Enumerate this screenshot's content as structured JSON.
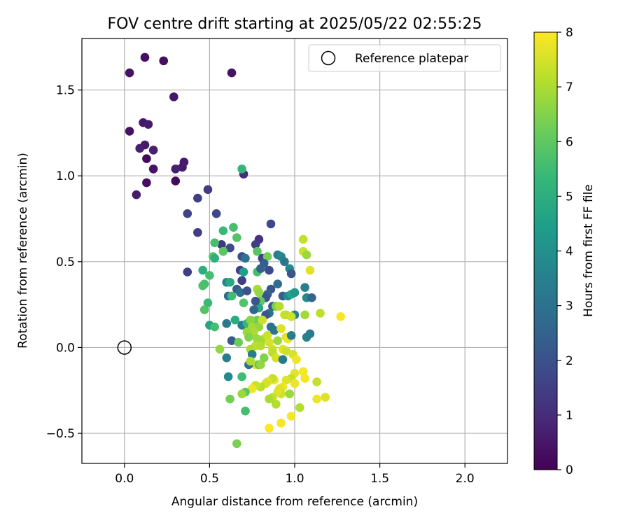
{
  "chart_data": {
    "type": "scatter",
    "title": "FOV centre drift starting at 2025/05/22 02:55:25",
    "xlabel": "Angular distance from reference (arcmin)",
    "ylabel": "Rotation from reference (arcmin)",
    "xlim": [
      -0.25,
      2.25
    ],
    "ylim": [
      -0.675,
      1.8
    ],
    "xticks": [
      {
        "value": 0.0,
        "label": "0.0"
      },
      {
        "value": 0.5,
        "label": "0.5"
      },
      {
        "value": 1.0,
        "label": "1.0"
      },
      {
        "value": 1.5,
        "label": "1.5"
      },
      {
        "value": 2.0,
        "label": "2.0"
      }
    ],
    "yticks": [
      {
        "value": -0.5,
        "label": "−0.5"
      },
      {
        "value": 0.0,
        "label": "0.0"
      },
      {
        "value": 0.5,
        "label": "0.5"
      },
      {
        "value": 1.0,
        "label": "1.0"
      },
      {
        "value": 1.5,
        "label": "1.5"
      }
    ],
    "grid": true,
    "legend": {
      "position": "top-right",
      "entries": [
        {
          "label": "Reference platepar",
          "marker": "open-circle"
        }
      ]
    },
    "reference_point": {
      "x": 0.0,
      "y": 0.0
    },
    "colorbar": {
      "label": "Hours from first FF file",
      "colormap": "viridis",
      "range": [
        0,
        8
      ],
      "ticks": [
        {
          "value": 0,
          "label": "0"
        },
        {
          "value": 1,
          "label": "1"
        },
        {
          "value": 2,
          "label": "2"
        },
        {
          "value": 3,
          "label": "3"
        },
        {
          "value": 4,
          "label": "4"
        },
        {
          "value": 5,
          "label": "5"
        },
        {
          "value": 6,
          "label": "6"
        },
        {
          "value": 7,
          "label": "7"
        },
        {
          "value": 8,
          "label": "8"
        }
      ]
    },
    "points": [
      {
        "x": 0.12,
        "y": 1.69,
        "h": 0.3
      },
      {
        "x": 0.23,
        "y": 1.67,
        "h": 0.3
      },
      {
        "x": 0.03,
        "y": 1.6,
        "h": 0.4
      },
      {
        "x": 0.63,
        "y": 1.6,
        "h": 0.4
      },
      {
        "x": 0.29,
        "y": 1.46,
        "h": 0.5
      },
      {
        "x": 0.11,
        "y": 1.31,
        "h": 0.5
      },
      {
        "x": 0.14,
        "y": 1.3,
        "h": 0.6
      },
      {
        "x": 0.03,
        "y": 1.26,
        "h": 0.4
      },
      {
        "x": 0.12,
        "y": 1.18,
        "h": 0.6
      },
      {
        "x": 0.09,
        "y": 1.16,
        "h": 0.7
      },
      {
        "x": 0.17,
        "y": 1.15,
        "h": 0.7
      },
      {
        "x": 0.13,
        "y": 1.1,
        "h": 0.2
      },
      {
        "x": 0.34,
        "y": 1.05,
        "h": 0.6
      },
      {
        "x": 0.35,
        "y": 1.08,
        "h": 0.6
      },
      {
        "x": 0.3,
        "y": 1.04,
        "h": 0.7
      },
      {
        "x": 0.17,
        "y": 1.04,
        "h": 0.4
      },
      {
        "x": 0.3,
        "y": 0.97,
        "h": 0.2
      },
      {
        "x": 0.13,
        "y": 0.96,
        "h": 0.3
      },
      {
        "x": 0.07,
        "y": 0.89,
        "h": 0.6
      },
      {
        "x": 0.49,
        "y": 0.92,
        "h": 1.4
      },
      {
        "x": 0.43,
        "y": 0.87,
        "h": 1.5
      },
      {
        "x": 0.37,
        "y": 0.78,
        "h": 1.6
      },
      {
        "x": 0.54,
        "y": 0.78,
        "h": 1.7
      },
      {
        "x": 0.7,
        "y": 1.01,
        "h": 1.0
      },
      {
        "x": 0.69,
        "y": 1.04,
        "h": 5.3
      },
      {
        "x": 0.43,
        "y": 0.67,
        "h": 1.4
      },
      {
        "x": 0.37,
        "y": 0.44,
        "h": 1.5
      },
      {
        "x": 0.86,
        "y": 0.72,
        "h": 1.7
      },
      {
        "x": 0.79,
        "y": 0.63,
        "h": 1.2
      },
      {
        "x": 0.77,
        "y": 0.6,
        "h": 1.5
      },
      {
        "x": 0.57,
        "y": 0.6,
        "h": 1.3
      },
      {
        "x": 0.62,
        "y": 0.58,
        "h": 1.8
      },
      {
        "x": 0.69,
        "y": 0.53,
        "h": 1.9
      },
      {
        "x": 0.71,
        "y": 0.52,
        "h": 3.0
      },
      {
        "x": 0.68,
        "y": 0.45,
        "h": 1.5
      },
      {
        "x": 0.66,
        "y": 0.64,
        "h": 5.8
      },
      {
        "x": 0.64,
        "y": 0.7,
        "h": 5.6
      },
      {
        "x": 0.58,
        "y": 0.68,
        "h": 5.4
      },
      {
        "x": 0.53,
        "y": 0.61,
        "h": 5.6
      },
      {
        "x": 0.58,
        "y": 0.56,
        "h": 5.9
      },
      {
        "x": 0.52,
        "y": 0.53,
        "h": 5.9
      },
      {
        "x": 0.53,
        "y": 0.52,
        "h": 5.1
      },
      {
        "x": 0.46,
        "y": 0.45,
        "h": 5.0
      },
      {
        "x": 0.5,
        "y": 0.42,
        "h": 5.6
      },
      {
        "x": 0.47,
        "y": 0.37,
        "h": 5.6
      },
      {
        "x": 0.46,
        "y": 0.36,
        "h": 5.7
      },
      {
        "x": 0.49,
        "y": 0.26,
        "h": 5.4
      },
      {
        "x": 0.47,
        "y": 0.22,
        "h": 5.8
      },
      {
        "x": 0.5,
        "y": 0.13,
        "h": 4.7
      },
      {
        "x": 0.53,
        "y": 0.12,
        "h": 5.6
      },
      {
        "x": 0.56,
        "y": -0.01,
        "h": 6.7
      },
      {
        "x": 0.6,
        "y": 0.14,
        "h": 3.2
      },
      {
        "x": 0.63,
        "y": 0.04,
        "h": 2.3
      },
      {
        "x": 0.6,
        "y": -0.06,
        "h": 3.3
      },
      {
        "x": 0.61,
        "y": -0.17,
        "h": 3.8
      },
      {
        "x": 0.62,
        "y": -0.3,
        "h": 6.3
      },
      {
        "x": 0.6,
        "y": 0.38,
        "h": 3.6
      },
      {
        "x": 0.62,
        "y": 0.38,
        "h": 4.8
      },
      {
        "x": 0.61,
        "y": 0.3,
        "h": 2.7
      },
      {
        "x": 0.63,
        "y": 0.3,
        "h": 5.5
      },
      {
        "x": 0.66,
        "y": 0.34,
        "h": 2.3
      },
      {
        "x": 0.68,
        "y": 0.32,
        "h": 2.9
      },
      {
        "x": 0.69,
        "y": 0.39,
        "h": 1.5
      },
      {
        "x": 0.7,
        "y": 0.26,
        "h": 5.8
      },
      {
        "x": 0.72,
        "y": 0.33,
        "h": 2.0
      },
      {
        "x": 0.65,
        "y": 0.16,
        "h": 4.9
      },
      {
        "x": 0.69,
        "y": 0.13,
        "h": 3.3
      },
      {
        "x": 0.72,
        "y": 0.14,
        "h": 5.3
      },
      {
        "x": 0.7,
        "y": 0.44,
        "h": 4.5
      },
      {
        "x": 0.78,
        "y": 0.44,
        "h": 5.6
      },
      {
        "x": 0.78,
        "y": 0.56,
        "h": 5.9
      },
      {
        "x": 0.81,
        "y": 0.52,
        "h": 1.6
      },
      {
        "x": 0.84,
        "y": 0.53,
        "h": 6.3
      },
      {
        "x": 0.82,
        "y": 0.49,
        "h": 2.4
      },
      {
        "x": 0.8,
        "y": 0.46,
        "h": 2.5
      },
      {
        "x": 0.85,
        "y": 0.45,
        "h": 1.8
      },
      {
        "x": 0.9,
        "y": 0.54,
        "h": 3.4
      },
      {
        "x": 0.92,
        "y": 0.53,
        "h": 3.7
      },
      {
        "x": 0.94,
        "y": 0.5,
        "h": 3.2
      },
      {
        "x": 0.97,
        "y": 0.46,
        "h": 3.8
      },
      {
        "x": 0.98,
        "y": 0.43,
        "h": 2.1
      },
      {
        "x": 0.9,
        "y": 0.37,
        "h": 2.8
      },
      {
        "x": 0.86,
        "y": 0.34,
        "h": 2.2
      },
      {
        "x": 0.84,
        "y": 0.31,
        "h": 2.5
      },
      {
        "x": 0.83,
        "y": 0.29,
        "h": 2.0
      },
      {
        "x": 0.78,
        "y": 0.34,
        "h": 7.0
      },
      {
        "x": 0.79,
        "y": 0.32,
        "h": 6.7
      },
      {
        "x": 0.8,
        "y": 0.27,
        "h": 6.0
      },
      {
        "x": 0.79,
        "y": 0.23,
        "h": 4.8
      },
      {
        "x": 0.76,
        "y": 0.22,
        "h": 2.6
      },
      {
        "x": 0.77,
        "y": 0.27,
        "h": 2.1
      },
      {
        "x": 0.87,
        "y": 0.24,
        "h": 2.2
      },
      {
        "x": 0.89,
        "y": 0.24,
        "h": 6.4
      },
      {
        "x": 0.91,
        "y": 0.24,
        "h": 7.1
      },
      {
        "x": 0.93,
        "y": 0.3,
        "h": 2.4
      },
      {
        "x": 0.96,
        "y": 0.3,
        "h": 3.8
      },
      {
        "x": 0.98,
        "y": 0.31,
        "h": 4.6
      },
      {
        "x": 1.0,
        "y": 0.32,
        "h": 4.2
      },
      {
        "x": 1.06,
        "y": 0.35,
        "h": 3.5
      },
      {
        "x": 1.07,
        "y": 0.29,
        "h": 3.8
      },
      {
        "x": 1.1,
        "y": 0.29,
        "h": 2.6
      },
      {
        "x": 1.09,
        "y": 0.45,
        "h": 7.6
      },
      {
        "x": 1.05,
        "y": 0.63,
        "h": 7.3
      },
      {
        "x": 1.05,
        "y": 0.56,
        "h": 7.4
      },
      {
        "x": 1.07,
        "y": 0.54,
        "h": 6.8
      },
      {
        "x": 1.06,
        "y": 0.19,
        "h": 6.9
      },
      {
        "x": 1.15,
        "y": 0.2,
        "h": 7.2
      },
      {
        "x": 1.27,
        "y": 0.18,
        "h": 7.9
      },
      {
        "x": 0.94,
        "y": 0.19,
        "h": 7.5
      },
      {
        "x": 0.95,
        "y": 0.19,
        "h": 7.3
      },
      {
        "x": 1.0,
        "y": 0.19,
        "h": 3.6
      },
      {
        "x": 0.98,
        "y": 0.18,
        "h": 7.4
      },
      {
        "x": 0.85,
        "y": 0.2,
        "h": 3.0
      },
      {
        "x": 0.83,
        "y": 0.19,
        "h": 2.2
      },
      {
        "x": 0.78,
        "y": 0.16,
        "h": 6.2
      },
      {
        "x": 0.79,
        "y": 0.12,
        "h": 6.7
      },
      {
        "x": 0.81,
        "y": 0.16,
        "h": 7.4
      },
      {
        "x": 0.74,
        "y": 0.16,
        "h": 6.6
      },
      {
        "x": 0.75,
        "y": 0.12,
        "h": 6.9
      },
      {
        "x": 0.76,
        "y": 0.09,
        "h": 7.0
      },
      {
        "x": 0.72,
        "y": 0.09,
        "h": 6.8
      },
      {
        "x": 0.73,
        "y": 0.06,
        "h": 6.5
      },
      {
        "x": 0.78,
        "y": 0.05,
        "h": 6.8
      },
      {
        "x": 0.77,
        "y": 0.01,
        "h": 7.2
      },
      {
        "x": 0.74,
        "y": -0.01,
        "h": 7.0
      },
      {
        "x": 0.8,
        "y": 0.01,
        "h": 7.1
      },
      {
        "x": 0.82,
        "y": 0.05,
        "h": 6.9
      },
      {
        "x": 0.84,
        "y": 0.07,
        "h": 7.4
      },
      {
        "x": 0.86,
        "y": 0.12,
        "h": 3.0
      },
      {
        "x": 0.88,
        "y": 0.1,
        "h": 3.1
      },
      {
        "x": 0.85,
        "y": 0.03,
        "h": 7.5
      },
      {
        "x": 0.87,
        "y": -0.01,
        "h": 7.4
      },
      {
        "x": 0.9,
        "y": 0.04,
        "h": 6.8
      },
      {
        "x": 0.92,
        "y": 0.11,
        "h": 7.6
      },
      {
        "x": 0.95,
        "y": 0.06,
        "h": 7.6
      },
      {
        "x": 0.96,
        "y": 0.05,
        "h": 7.8
      },
      {
        "x": 0.93,
        "y": -0.01,
        "h": 7.7
      },
      {
        "x": 0.95,
        "y": -0.02,
        "h": 7.4
      },
      {
        "x": 0.87,
        "y": -0.03,
        "h": 7.2
      },
      {
        "x": 0.89,
        "y": -0.06,
        "h": 7.5
      },
      {
        "x": 0.93,
        "y": -0.07,
        "h": 3.2
      },
      {
        "x": 0.98,
        "y": 0.07,
        "h": 3.4
      },
      {
        "x": 1.07,
        "y": 0.06,
        "h": 3.5
      },
      {
        "x": 1.09,
        "y": 0.08,
        "h": 3.4
      },
      {
        "x": 0.99,
        "y": -0.04,
        "h": 7.5
      },
      {
        "x": 1.01,
        "y": -0.07,
        "h": 7.8
      },
      {
        "x": 1.05,
        "y": -0.14,
        "h": 7.9
      },
      {
        "x": 1.06,
        "y": -0.18,
        "h": 7.9
      },
      {
        "x": 1.0,
        "y": -0.15,
        "h": 7.7
      },
      {
        "x": 0.98,
        "y": -0.18,
        "h": 7.3
      },
      {
        "x": 1.0,
        "y": -0.21,
        "h": 7.8
      },
      {
        "x": 0.95,
        "y": -0.19,
        "h": 7.6
      },
      {
        "x": 0.93,
        "y": -0.23,
        "h": 7.8
      },
      {
        "x": 0.91,
        "y": -0.24,
        "h": 7.6
      },
      {
        "x": 0.88,
        "y": -0.19,
        "h": 7.9
      },
      {
        "x": 0.87,
        "y": -0.18,
        "h": 7.3
      },
      {
        "x": 0.84,
        "y": -0.2,
        "h": 7.7
      },
      {
        "x": 0.83,
        "y": -0.21,
        "h": 7.5
      },
      {
        "x": 0.8,
        "y": -0.23,
        "h": 7.2
      },
      {
        "x": 0.77,
        "y": -0.22,
        "h": 7.4
      },
      {
        "x": 0.75,
        "y": -0.24,
        "h": 7.8
      },
      {
        "x": 0.92,
        "y": -0.27,
        "h": 7.4
      },
      {
        "x": 0.9,
        "y": -0.26,
        "h": 7.6
      },
      {
        "x": 0.87,
        "y": -0.29,
        "h": 7.3
      },
      {
        "x": 0.89,
        "y": -0.33,
        "h": 7.1
      },
      {
        "x": 0.85,
        "y": -0.3,
        "h": 7.0
      },
      {
        "x": 0.97,
        "y": -0.27,
        "h": 6.8
      },
      {
        "x": 1.03,
        "y": -0.35,
        "h": 7.1
      },
      {
        "x": 1.13,
        "y": -0.3,
        "h": 7.8
      },
      {
        "x": 1.13,
        "y": -0.2,
        "h": 7.3
      },
      {
        "x": 1.18,
        "y": -0.29,
        "h": 7.6
      },
      {
        "x": 0.98,
        "y": -0.4,
        "h": 7.9
      },
      {
        "x": 0.92,
        "y": -0.44,
        "h": 7.9
      },
      {
        "x": 0.85,
        "y": -0.47,
        "h": 8.0
      },
      {
        "x": 0.77,
        "y": -0.1,
        "h": 7.6
      },
      {
        "x": 0.75,
        "y": -0.04,
        "h": 3.3
      },
      {
        "x": 0.73,
        "y": -0.1,
        "h": 2.8
      },
      {
        "x": 0.74,
        "y": -0.08,
        "h": 7.0
      },
      {
        "x": 0.79,
        "y": -0.1,
        "h": 5.9
      },
      {
        "x": 0.8,
        "y": -0.1,
        "h": 6.7
      },
      {
        "x": 0.82,
        "y": -0.06,
        "h": 6.5
      },
      {
        "x": 0.67,
        "y": 0.03,
        "h": 6.2
      },
      {
        "x": 0.69,
        "y": -0.17,
        "h": 5.5
      },
      {
        "x": 0.71,
        "y": -0.26,
        "h": 5.9
      },
      {
        "x": 0.69,
        "y": -0.27,
        "h": 6.8
      },
      {
        "x": 0.71,
        "y": -0.37,
        "h": 5.6
      },
      {
        "x": 0.66,
        "y": -0.56,
        "h": 6.4
      }
    ]
  }
}
